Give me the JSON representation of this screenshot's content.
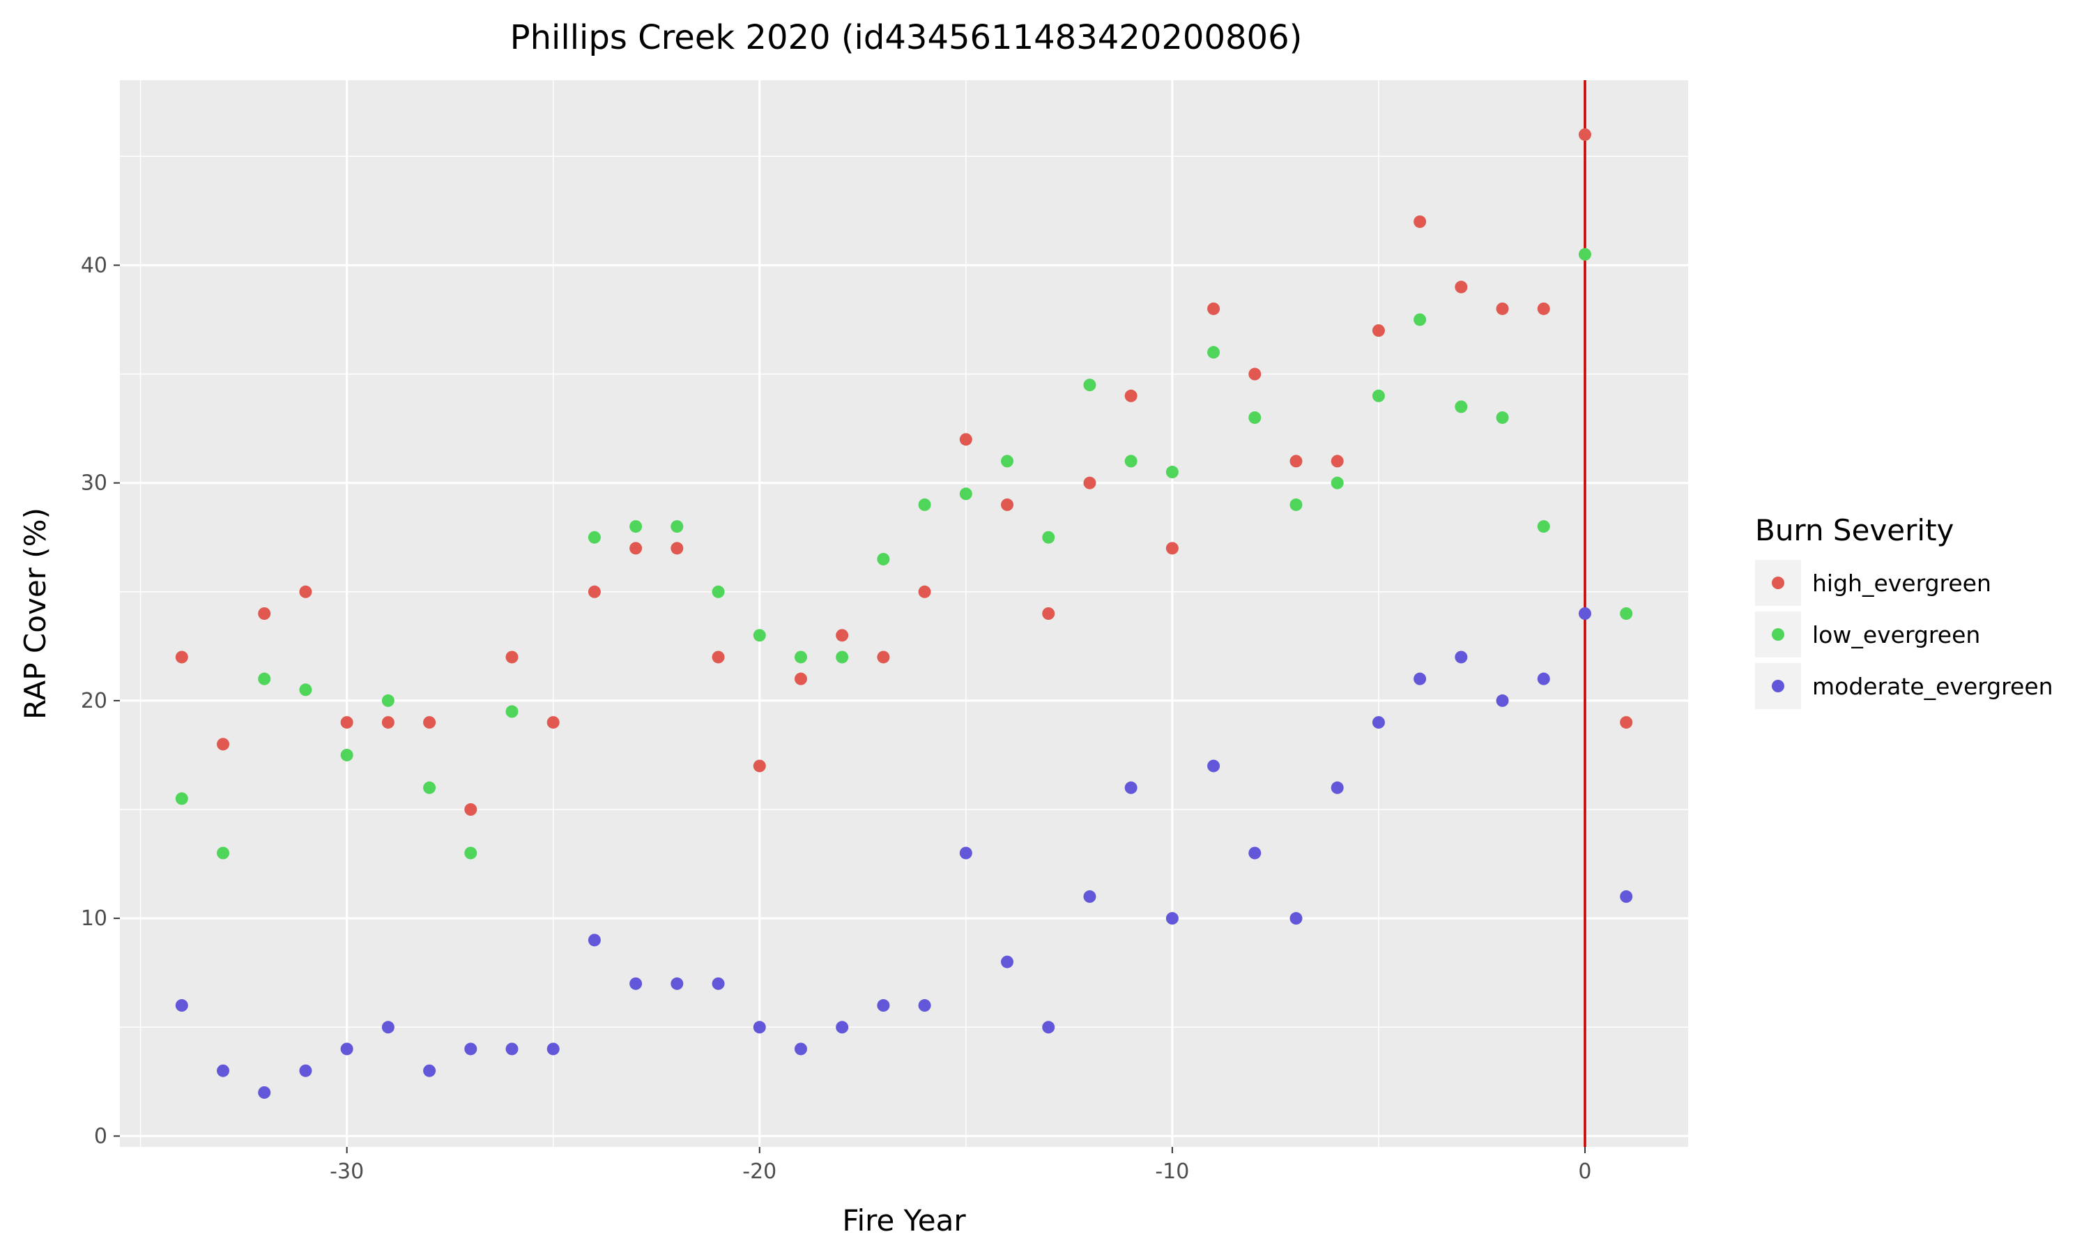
{
  "chart_data": {
    "type": "scatter",
    "title": "Phillips Creek 2020 (id4345611483420200806)",
    "xlabel": "Fire Year",
    "ylabel": "RAP Cover (%)",
    "xlim": [
      -35.5,
      2.5
    ],
    "ylim": [
      -0.5,
      48.5
    ],
    "x_ticks": [
      -30,
      -20,
      -10,
      0
    ],
    "x_tick_labels": [
      "-30",
      "-20",
      "-10",
      "0"
    ],
    "y_ticks": [
      0,
      10,
      20,
      30,
      40
    ],
    "y_tick_labels": [
      "0",
      "10",
      "20",
      "30",
      "40"
    ],
    "grid": true,
    "vline": {
      "x": 0,
      "color": "#cc0000"
    },
    "legend": {
      "title": "Burn Severity",
      "placement": "right"
    },
    "series": [
      {
        "name": "high_evergreen",
        "color": "#e0584f",
        "x": [
          -34,
          -33,
          -32,
          -31,
          -30,
          -29,
          -28,
          -27,
          -26,
          -25,
          -24,
          -23,
          -22,
          -21,
          -20,
          -19,
          -18,
          -17,
          -16,
          -15,
          -14,
          -13,
          -12,
          -11,
          -10,
          -9,
          -8,
          -7,
          -6,
          -5,
          -4,
          -3,
          -2,
          -1,
          0,
          1
        ],
        "y": [
          22,
          18,
          24,
          25,
          19,
          19,
          19,
          15,
          22,
          19,
          25,
          27,
          27,
          22,
          17,
          21,
          23,
          22,
          25,
          32,
          29,
          24,
          30,
          34,
          27,
          38,
          35,
          31,
          31,
          37,
          42,
          39,
          38,
          38,
          46,
          19
        ]
      },
      {
        "name": "low_evergreen",
        "color": "#4fd55a",
        "x": [
          -34,
          -33,
          -32,
          -31,
          -30,
          -29,
          -28,
          -27,
          -26,
          -24,
          -23,
          -22,
          -21,
          -20,
          -19,
          -18,
          -17,
          -16,
          -15,
          -14,
          -13,
          -12,
          -11,
          -10,
          -9,
          -8,
          -7,
          -6,
          -5,
          -4,
          -3,
          -2,
          -1,
          0,
          1
        ],
        "y": [
          15.5,
          13,
          21,
          20.5,
          17.5,
          20,
          16,
          13,
          19.5,
          27.5,
          28,
          28,
          25,
          23,
          22,
          22,
          26.5,
          29,
          29.5,
          31,
          27.5,
          34.5,
          31,
          30.5,
          36,
          33,
          29,
          30,
          34,
          37.5,
          33.5,
          33,
          28,
          40.5,
          24
        ]
      },
      {
        "name": "moderate_evergreen",
        "color": "#6357d9",
        "x": [
          -34,
          -33,
          -32,
          -31,
          -30,
          -29,
          -28,
          -27,
          -26,
          -25,
          -24,
          -23,
          -22,
          -21,
          -20,
          -19,
          -18,
          -17,
          -16,
          -15,
          -14,
          -13,
          -12,
          -11,
          -10,
          -9,
          -8,
          -7,
          -6,
          -5,
          -4,
          -3,
          -2,
          -1,
          0,
          1
        ],
        "y": [
          6,
          3,
          2,
          3,
          4,
          5,
          3,
          4,
          4,
          4,
          9,
          7,
          7,
          7,
          5,
          4,
          5,
          6,
          6,
          13,
          8,
          5,
          11,
          16,
          10,
          17,
          13,
          10,
          16,
          19,
          21,
          22,
          20,
          21,
          24,
          11
        ]
      }
    ]
  }
}
